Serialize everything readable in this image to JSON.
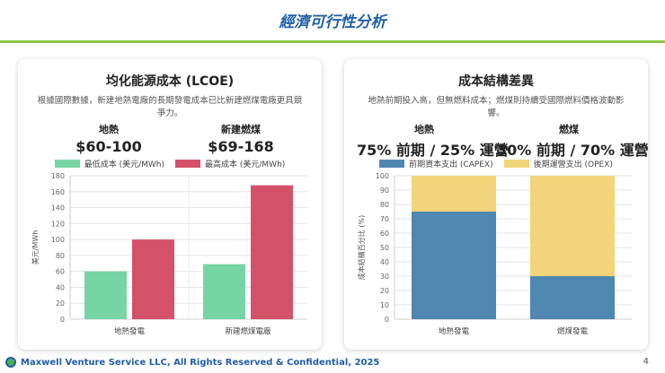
{
  "slide": {
    "title": "經濟可行性分析",
    "page_number": "4",
    "footer": "Maxwell Venture Service LLC, All Rights Reserved & Confidential, 2025",
    "colors": {
      "title": "#1f5fa8",
      "rule": "#8cc84b"
    }
  },
  "left_card": {
    "title": "均化能源成本 (LCOE)",
    "description": "根據國際數據，新建地熱電廠的長期發電成本已比新建燃煤電廠更具競爭力。",
    "stats": [
      {
        "label": "地熱",
        "value": "$60-100"
      },
      {
        "label": "新建燃煤",
        "value": "$69-168"
      }
    ]
  },
  "right_card": {
    "title": "成本結構差異",
    "description": "地熱前期投入高，但無燃料成本；燃煤則持續受國際燃料價格波動影響。",
    "stats": [
      {
        "label": "地熱",
        "value": "75% 前期 / 25% 運營"
      },
      {
        "label": "燃煤",
        "value": "30% 前期 / 70% 運營"
      }
    ]
  },
  "chart_data": [
    {
      "type": "bar",
      "categories": [
        "地熱發電",
        "新建燃煤電廠"
      ],
      "series": [
        {
          "name": "最低成本 (美元/MWh)",
          "values": [
            60,
            69
          ],
          "color": "#77d4a4"
        },
        {
          "name": "最高成本 (美元/MWh)",
          "values": [
            100,
            168
          ],
          "color": "#d4516a"
        }
      ],
      "ylabel": "美元/MWh",
      "ylim": [
        0,
        180
      ],
      "yticks": [
        0,
        20,
        40,
        60,
        80,
        100,
        120,
        140,
        160,
        180
      ],
      "legend": "top",
      "grid": true
    },
    {
      "type": "bar",
      "stacked": true,
      "categories": [
        "地熱發電",
        "燃煤發電"
      ],
      "series": [
        {
          "name": "前期資本支出 (CAPEX)",
          "values": [
            75,
            30
          ],
          "color": "#4f87b0"
        },
        {
          "name": "後期運營支出 (OPEX)",
          "values": [
            25,
            70
          ],
          "color": "#f2d47a"
        }
      ],
      "ylabel": "成本結構百分比 (%)",
      "ylim": [
        0,
        100
      ],
      "yticks": [
        0,
        10,
        20,
        30,
        40,
        50,
        60,
        70,
        80,
        90,
        100
      ],
      "legend": "top",
      "grid": true
    }
  ]
}
